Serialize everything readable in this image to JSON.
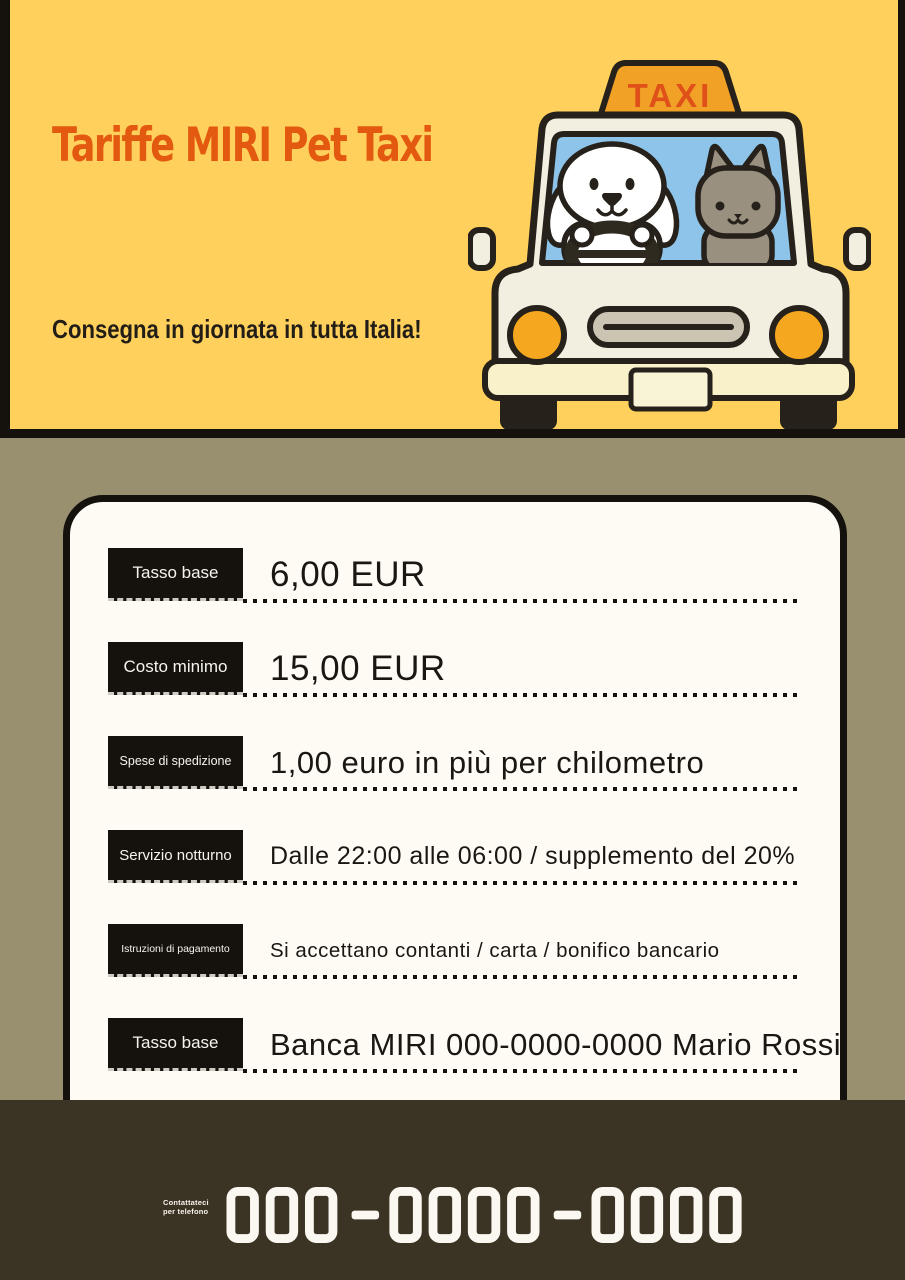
{
  "header": {
    "title": "Tariffe MIRI Pet Taxi",
    "subtitle": "Consegna in giornata in tutta Italia!",
    "taxi_sign": "TAXI"
  },
  "pricing": {
    "rows": [
      {
        "label": "Tasso base",
        "value": "6,00 EUR"
      },
      {
        "label": "Costo minimo",
        "value": "15,00 EUR"
      },
      {
        "label": "Spese di spedizione",
        "value": "1,00 euro in più per chilometro"
      },
      {
        "label": "Servizio notturno",
        "value": "Dalle 22:00 alle 06:00 / supplemento del 20%"
      },
      {
        "label": "Istruzioni di pagamento",
        "value": "Si accettano contanti / carta / bonifico bancario"
      },
      {
        "label": "Tasso base",
        "value": "Banca MIRI 000-0000-0000 Mario Rossi"
      }
    ]
  },
  "footer": {
    "contact_label": "Contattateci per telefono",
    "phone": "000-0000-0000"
  },
  "colors": {
    "header_yellow": "#FFD15C",
    "title_orange": "#E2590F",
    "olive_background": "#99906F",
    "footer_brown": "#3B3424",
    "card_white": "#FDFBF4",
    "ink_black": "#15120E",
    "taxi_amber": "#F2A127",
    "windshield_blue": "#8EC4E9",
    "car_cream": "#F2EEE0"
  }
}
